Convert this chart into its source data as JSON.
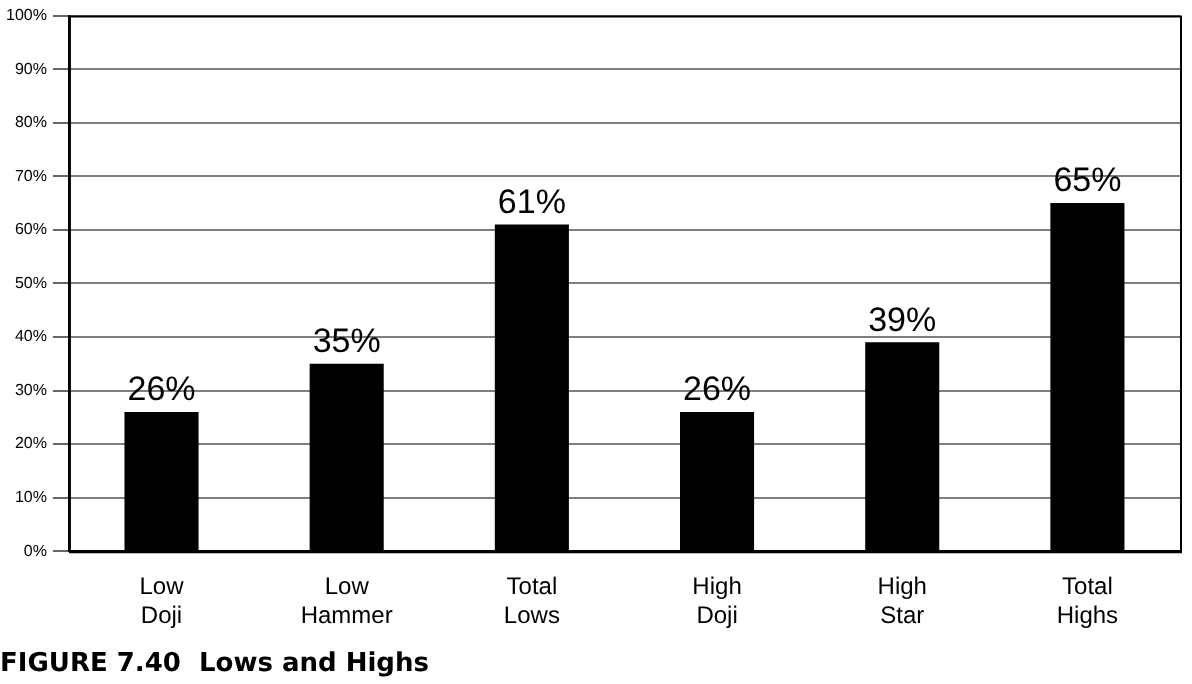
{
  "chart_data": {
    "type": "bar",
    "title": "FIGURE 7.40  Lows and Highs",
    "categories": [
      "Low Doji",
      "Low Hammer",
      "Total Lows",
      "High Doji",
      "High Star",
      "Total Highs"
    ],
    "values": [
      26,
      35,
      61,
      26,
      39,
      65
    ],
    "color": "#000000",
    "value_labels": [
      "26%",
      "35%",
      "61%",
      "26%",
      "39%",
      "65%"
    ],
    "ylim": [
      0,
      100
    ],
    "yticks": [
      {
        "value": 0,
        "label": "0%"
      },
      {
        "value": 10,
        "label": "10%"
      },
      {
        "value": 20,
        "label": "20%"
      },
      {
        "value": 30,
        "label": "30%"
      },
      {
        "value": 40,
        "label": "40%"
      },
      {
        "value": 50,
        "label": "50%"
      },
      {
        "value": 60,
        "label": "60%"
      },
      {
        "value": 70,
        "label": "70%"
      },
      {
        "value": 80,
        "label": "80%"
      },
      {
        "value": 90,
        "label": "90%"
      },
      {
        "value": 100,
        "label": "100%"
      }
    ],
    "grid": "y"
  }
}
